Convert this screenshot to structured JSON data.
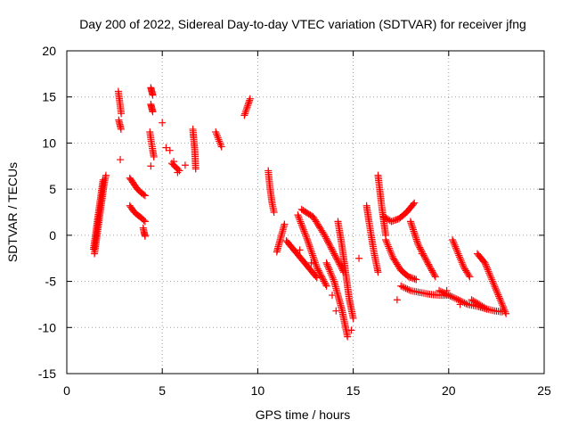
{
  "chart_data": {
    "type": "scatter",
    "title": "Day 200 of 2022, Sidereal Day-to-day VTEC variation (SDTVAR) for receiver jfng",
    "xlabel": "GPS time / hours",
    "ylabel": "SDTVAR / TECUs",
    "xlim": [
      0,
      25
    ],
    "ylim": [
      -15,
      20
    ],
    "xticks": [
      0,
      5,
      10,
      15,
      20,
      25
    ],
    "yticks": [
      -15,
      -10,
      -5,
      0,
      5,
      10,
      15,
      20
    ],
    "xtick_labels": [
      "0",
      "5",
      "10",
      "15",
      "20",
      "25"
    ],
    "ytick_labels": [
      "-15",
      "-10",
      "-5",
      "0",
      "5",
      "10",
      "15",
      "20"
    ],
    "grid": true,
    "marker": "+",
    "color": "#ff0000",
    "tracks": [
      {
        "x": [
          1.45,
          1.55,
          1.65,
          1.75,
          1.85,
          1.95,
          2.05
        ],
        "y": [
          -2.0,
          -0.5,
          1.0,
          2.5,
          4.0,
          5.5,
          6.5
        ]
      },
      {
        "x": [
          1.4,
          1.5,
          1.6,
          1.7,
          1.8,
          1.9
        ],
        "y": [
          -1.5,
          0.0,
          1.5,
          3.0,
          4.5,
          6.0
        ]
      },
      {
        "x": [
          2.7,
          2.75,
          2.8,
          2.85
        ],
        "y": [
          15.6,
          14.8,
          14.0,
          13.2
        ]
      },
      {
        "x": [
          2.72,
          2.78,
          2.84
        ],
        "y": [
          12.5,
          12.0,
          11.5
        ]
      },
      {
        "x": [
          3.3,
          3.5,
          3.7,
          3.9,
          4.1
        ],
        "y": [
          6.2,
          5.6,
          5.0,
          4.6,
          4.3
        ]
      },
      {
        "x": [
          3.3,
          3.5,
          3.7,
          3.9,
          4.1
        ],
        "y": [
          3.2,
          2.6,
          2.2,
          1.9,
          1.5
        ]
      },
      {
        "x": [
          4.0,
          4.05,
          4.1
        ],
        "y": [
          0.8,
          0.3,
          -0.1
        ]
      },
      {
        "x": [
          4.4,
          4.45,
          4.5
        ],
        "y": [
          16.0,
          15.6,
          15.2
        ]
      },
      {
        "x": [
          4.4,
          4.45,
          4.5
        ],
        "y": [
          14.2,
          13.8,
          13.4
        ]
      },
      {
        "x": [
          4.35,
          4.42,
          4.5,
          4.56
        ],
        "y": [
          11.2,
          10.2,
          9.2,
          8.5
        ]
      },
      {
        "x": [
          5.5,
          5.7,
          5.9
        ],
        "y": [
          7.8,
          7.4,
          7.0
        ]
      },
      {
        "x": [
          6.6,
          6.65,
          6.7,
          6.75
        ],
        "y": [
          11.5,
          10.4,
          9.3,
          7.2
        ]
      },
      {
        "x": [
          7.8,
          7.95,
          8.1
        ],
        "y": [
          11.2,
          10.4,
          9.6
        ]
      },
      {
        "x": [
          9.3,
          9.45,
          9.6
        ],
        "y": [
          13.0,
          13.9,
          14.8
        ]
      },
      {
        "x": [
          10.55,
          10.65,
          10.75,
          10.85
        ],
        "y": [
          7.0,
          5.0,
          3.5,
          2.5
        ]
      },
      {
        "x": [
          11.0,
          11.2,
          11.4
        ],
        "y": [
          -1.8,
          -0.3,
          1.2
        ]
      },
      {
        "x": [
          11.5,
          11.9,
          12.3,
          12.7,
          13.1
        ],
        "y": [
          -0.6,
          -1.6,
          -2.6,
          -3.6,
          -4.6
        ]
      },
      {
        "x": [
          12.3,
          12.9,
          13.5,
          14.0,
          14.5
        ],
        "y": [
          2.8,
          2.0,
          0.0,
          -2.0,
          -4.0
        ]
      },
      {
        "x": [
          12.1,
          12.6,
          13.1,
          13.6
        ],
        "y": [
          2.2,
          -0.5,
          -3.5,
          -5.5
        ]
      },
      {
        "x": [
          13.6,
          14.0,
          14.4,
          14.7
        ],
        "y": [
          -3.0,
          -5.0,
          -8.0,
          -11.0
        ]
      },
      {
        "x": [
          14.2,
          14.4,
          14.6,
          14.8,
          15.0
        ],
        "y": [
          1.5,
          -1.0,
          -4.0,
          -7.0,
          -9.0
        ]
      },
      {
        "x": [
          15.7,
          15.9,
          16.1,
          16.3
        ],
        "y": [
          3.2,
          0.5,
          -2.0,
          -4.0
        ]
      },
      {
        "x": [
          16.3,
          16.5,
          16.7
        ],
        "y": [
          6.5,
          3.0,
          0.0
        ]
      },
      {
        "x": [
          16.7,
          17.1,
          17.5,
          17.9,
          18.3
        ],
        "y": [
          -0.5,
          -2.5,
          -3.8,
          -4.5,
          -4.8
        ]
      },
      {
        "x": [
          16.6,
          17.0,
          17.4,
          17.8,
          18.2
        ],
        "y": [
          2.0,
          1.5,
          1.8,
          2.5,
          3.5
        ]
      },
      {
        "x": [
          17.5,
          18.0,
          18.5,
          19.0,
          19.5,
          20.0
        ],
        "y": [
          -5.5,
          -6.0,
          -6.2,
          -6.4,
          -6.5,
          -6.5
        ]
      },
      {
        "x": [
          18.0,
          18.4,
          18.9,
          19.3
        ],
        "y": [
          1.5,
          -1.0,
          -3.0,
          -4.5
        ]
      },
      {
        "x": [
          19.5,
          20.0,
          20.5,
          21.0,
          21.5,
          22.0
        ],
        "y": [
          -6.0,
          -6.5,
          -7.0,
          -7.5,
          -7.7,
          -8.0
        ]
      },
      {
        "x": [
          20.2,
          20.5,
          20.8,
          21.1
        ],
        "y": [
          -0.5,
          -2.0,
          -3.5,
          -4.5
        ]
      },
      {
        "x": [
          21.2,
          21.6,
          22.0,
          22.4,
          22.8
        ],
        "y": [
          -7.0,
          -7.5,
          -8.0,
          -8.2,
          -8.3
        ]
      },
      {
        "x": [
          21.5,
          21.9,
          22.3,
          22.7,
          23.0
        ],
        "y": [
          -2.0,
          -3.0,
          -5.0,
          -7.0,
          -8.5
        ]
      }
    ],
    "points": {
      "x": [
        2.8,
        4.4,
        5.0,
        5.2,
        5.4,
        5.6,
        5.8,
        6.2,
        12.2,
        12.8,
        13.9,
        14.1,
        14.9,
        15.3,
        17.3,
        18.6,
        19.9,
        20.6
      ],
      "y": [
        8.2,
        7.5,
        12.2,
        9.5,
        9.2,
        8.0,
        6.8,
        7.6,
        -1.6,
        -3.0,
        -6.5,
        -8.2,
        -10.3,
        -2.5,
        -7.0,
        -2.0,
        -6.0,
        -7.5
      ]
    }
  }
}
